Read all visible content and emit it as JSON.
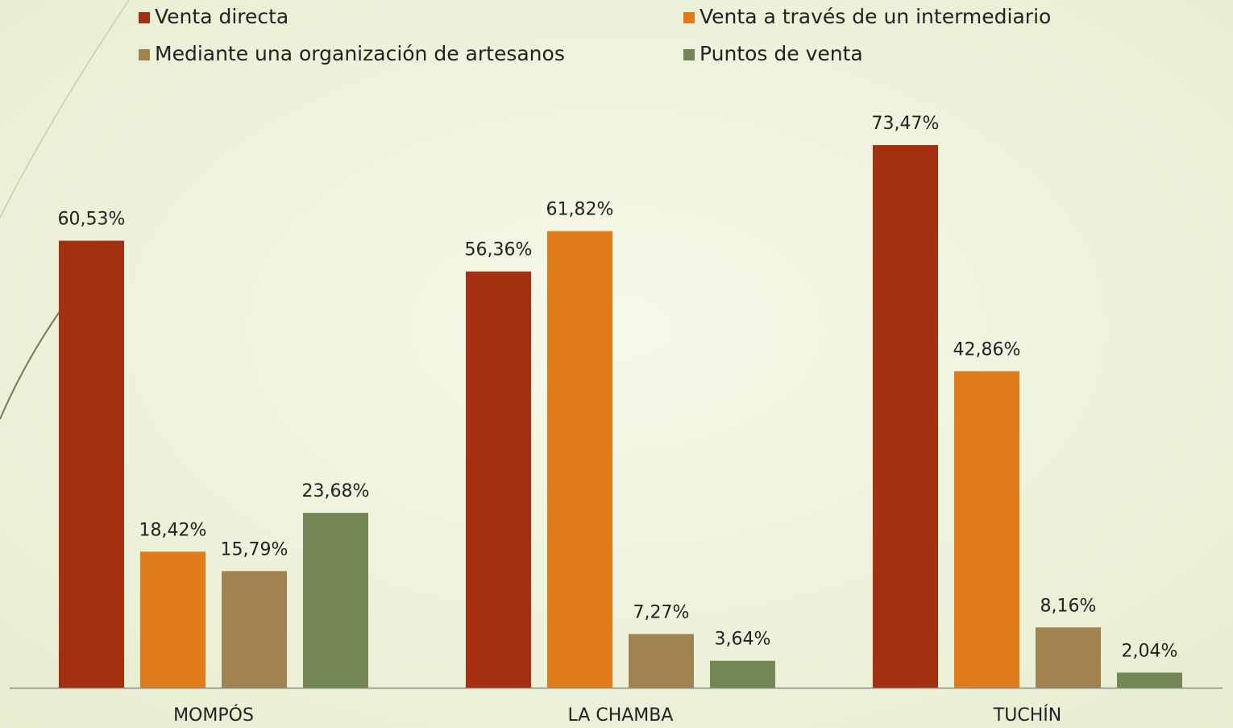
{
  "chart_data": {
    "type": "bar",
    "categories": [
      "MOMPÓS",
      "LA CHAMBA",
      "TUCHÍN"
    ],
    "series": [
      {
        "name": "Venta directa",
        "color": "#a52f11",
        "values": [
          60.53,
          56.36,
          73.47
        ],
        "value_labels": [
          "60,53%",
          "56,36%",
          "73,47%"
        ]
      },
      {
        "name": "Venta a través de un intermediario",
        "color": "#e07c1a",
        "values": [
          18.42,
          61.82,
          42.86
        ],
        "value_labels": [
          "18,42%",
          "61,82%",
          "42,86%"
        ]
      },
      {
        "name": "Mediante una organización de artesanos",
        "color": "#a08350",
        "values": [
          15.79,
          7.27,
          8.16
        ],
        "value_labels": [
          "15,79%",
          "7,27%",
          "8,16%"
        ]
      },
      {
        "name": "Puntos de venta",
        "color": "#728753",
        "values": [
          23.68,
          3.64,
          2.04
        ],
        "value_labels": [
          "23,68%",
          "3,64%",
          "2,04%"
        ]
      }
    ],
    "legend": "top"
  }
}
